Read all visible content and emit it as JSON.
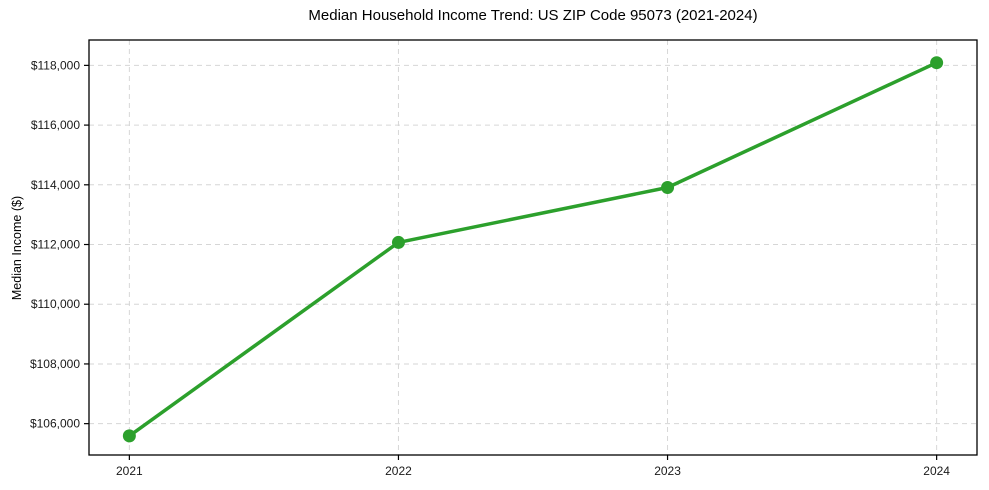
{
  "chart_data": {
    "type": "line",
    "title": "Median Household Income Trend: US ZIP Code 95073 (2021-2024)",
    "xlabel": "",
    "ylabel": "Median Income ($)",
    "x": [
      2021,
      2022,
      2023,
      2024
    ],
    "x_tick_labels": [
      "2021",
      "2022",
      "2023",
      "2024"
    ],
    "series": [
      {
        "name": "Median Household Income",
        "values": [
          105590,
          112070,
          113910,
          118090
        ],
        "color": "#2ca02c",
        "marker": "circle"
      }
    ],
    "y_ticks": [
      106000,
      108000,
      110000,
      112000,
      114000,
      116000,
      118000
    ],
    "y_tick_labels": [
      "$106,000",
      "$108,000",
      "$110,000",
      "$112,000",
      "$114,000",
      "$116,000",
      "$118,000"
    ],
    "ylim": [
      104950,
      118850
    ],
    "xlim": [
      2020.85,
      2024.15
    ],
    "grid": true,
    "grid_style": "dashed",
    "legend": "none",
    "colors": {
      "grid": "#d6d6d6",
      "axis": "#000000",
      "text": "#1a1a1a",
      "background": "#ffffff"
    }
  }
}
